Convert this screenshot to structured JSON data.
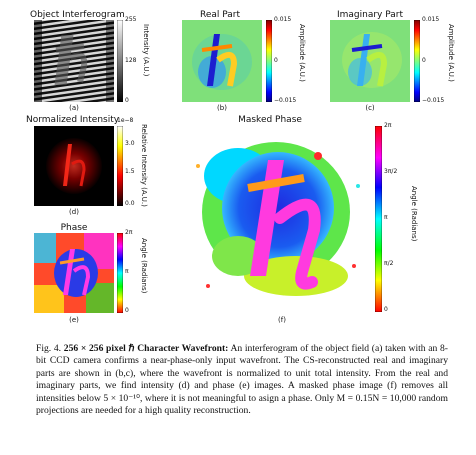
{
  "panels": {
    "a": {
      "title": "Object Interferogram",
      "sublabel": "(a)",
      "colorbar": {
        "ticks": [
          "255",
          "128",
          "0"
        ],
        "label": "Intensity (A.U.)"
      }
    },
    "b": {
      "title": "Real Part",
      "sublabel": "(b)",
      "colorbar": {
        "ticks": [
          "0.015",
          "0",
          "−0.015"
        ],
        "label": "Amplitude (A.U.)"
      }
    },
    "c": {
      "title": "Imaginary Part",
      "sublabel": "(c)",
      "colorbar": {
        "ticks": [
          "0.015",
          "0",
          "−0.015"
        ],
        "label": "Amplitude (A.U.)"
      }
    },
    "d": {
      "title": "Normalized Intensity",
      "sublabel": "(d)",
      "colorbar": {
        "exponent": "1e−8",
        "ticks": [
          "3.0",
          "1.5",
          "0.0"
        ],
        "label": "Relative Intensity (A.U.)"
      }
    },
    "e": {
      "title": "Phase",
      "sublabel": "(e)",
      "colorbar": {
        "ticks": [
          "2π",
          "π",
          "0"
        ],
        "label": "Angle (Radians)"
      }
    },
    "f": {
      "title": "Masked Phase",
      "sublabel": "(f)",
      "colorbar": {
        "ticks": [
          "2π",
          "3π/2",
          "π",
          "π/2",
          "0"
        ],
        "label": "Angle (Radians)"
      }
    }
  },
  "caption": {
    "fig_label": "Fig. 4.",
    "bold_title": "256 × 256 pixel ℏ Character Wavefront:",
    "body": " An interferogram of the object field (a) taken with an 8-bit CCD camera confirms a near-phase-only input wavefront. The CS-reconstructed real and imaginary parts are shown in (b,c), where the wavefront is normalized to unit total intensity. From the real and imaginary parts, we find intensity (d) and phase (e) images. A masked phase image (f) removes all intensities below 5 × 10⁻¹⁰, where it is not meaningful to asign a phase. Only M = 0.15N = 10,000 random projections are needed for a high quality reconstruction."
  },
  "colors": {
    "jet": [
      "#00007f",
      "#0000ff",
      "#00ffff",
      "#7fff7f",
      "#ffff00",
      "#ff0000",
      "#7f0000"
    ],
    "hot": [
      "#000000",
      "#ff0000",
      "#ffff00",
      "#ffffff"
    ],
    "hsv": [
      "#ff0000",
      "#ffff00",
      "#00ff00",
      "#00ffff",
      "#0000ff",
      "#ff00ff",
      "#ff0000"
    ]
  }
}
